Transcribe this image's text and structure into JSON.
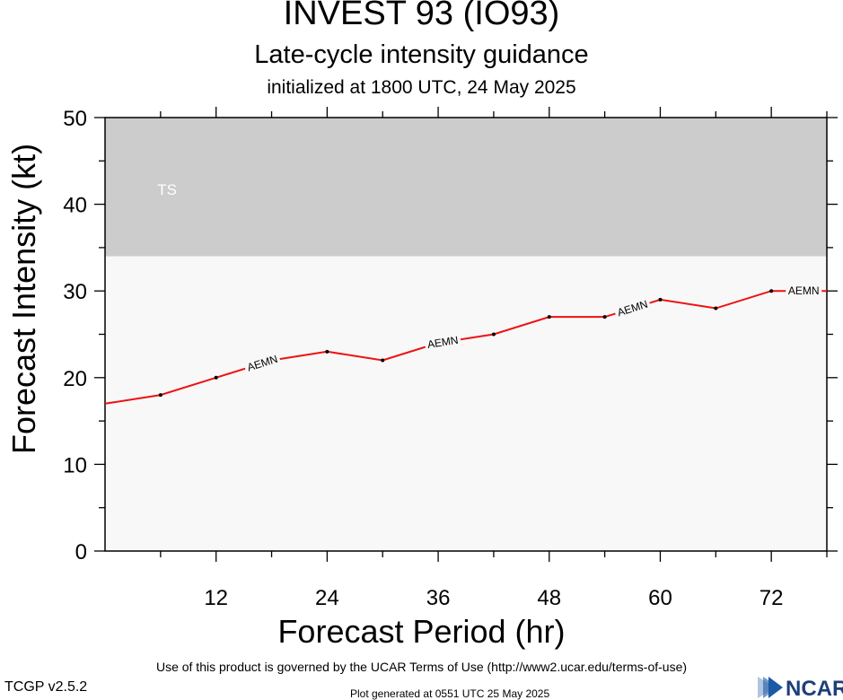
{
  "header": {
    "title": "INVEST 93 (IO93)",
    "subtitle": "Late-cycle intensity guidance",
    "initialized": "initialized at 1800 UTC, 24 May 2025"
  },
  "footer": {
    "terms": "Use of this product is governed by the UCAR Terms of Use (http://www2.ucar.edu/terms-of-use)",
    "version": "TCGP v2.5.2",
    "generated": "Plot generated at 0551 UTC   25 May 2025",
    "logo_text": "NCAR"
  },
  "chart_data": {
    "type": "line",
    "xlabel": "Forecast Period (hr)",
    "ylabel": "Forecast Intensity (kt)",
    "xlim": [
      0,
      78
    ],
    "ylim": [
      0,
      50
    ],
    "xticks": [
      12,
      24,
      36,
      48,
      60,
      72
    ],
    "yticks": [
      0,
      10,
      20,
      30,
      40,
      50
    ],
    "grid": false,
    "bands": [
      {
        "label": "TS",
        "from": 34,
        "to": 50,
        "color": "#cccccc"
      }
    ],
    "series": [
      {
        "name": "AEMN",
        "color": "#ee1111",
        "x": [
          0,
          6,
          12,
          18,
          24,
          30,
          36,
          42,
          48,
          54,
          60,
          66,
          72,
          78
        ],
        "values": [
          17,
          18,
          20,
          22,
          23,
          22,
          24,
          25,
          27,
          27,
          29,
          28,
          30,
          30
        ],
        "label_positions_hr": [
          17,
          36.5,
          57,
          75.5
        ]
      }
    ]
  }
}
